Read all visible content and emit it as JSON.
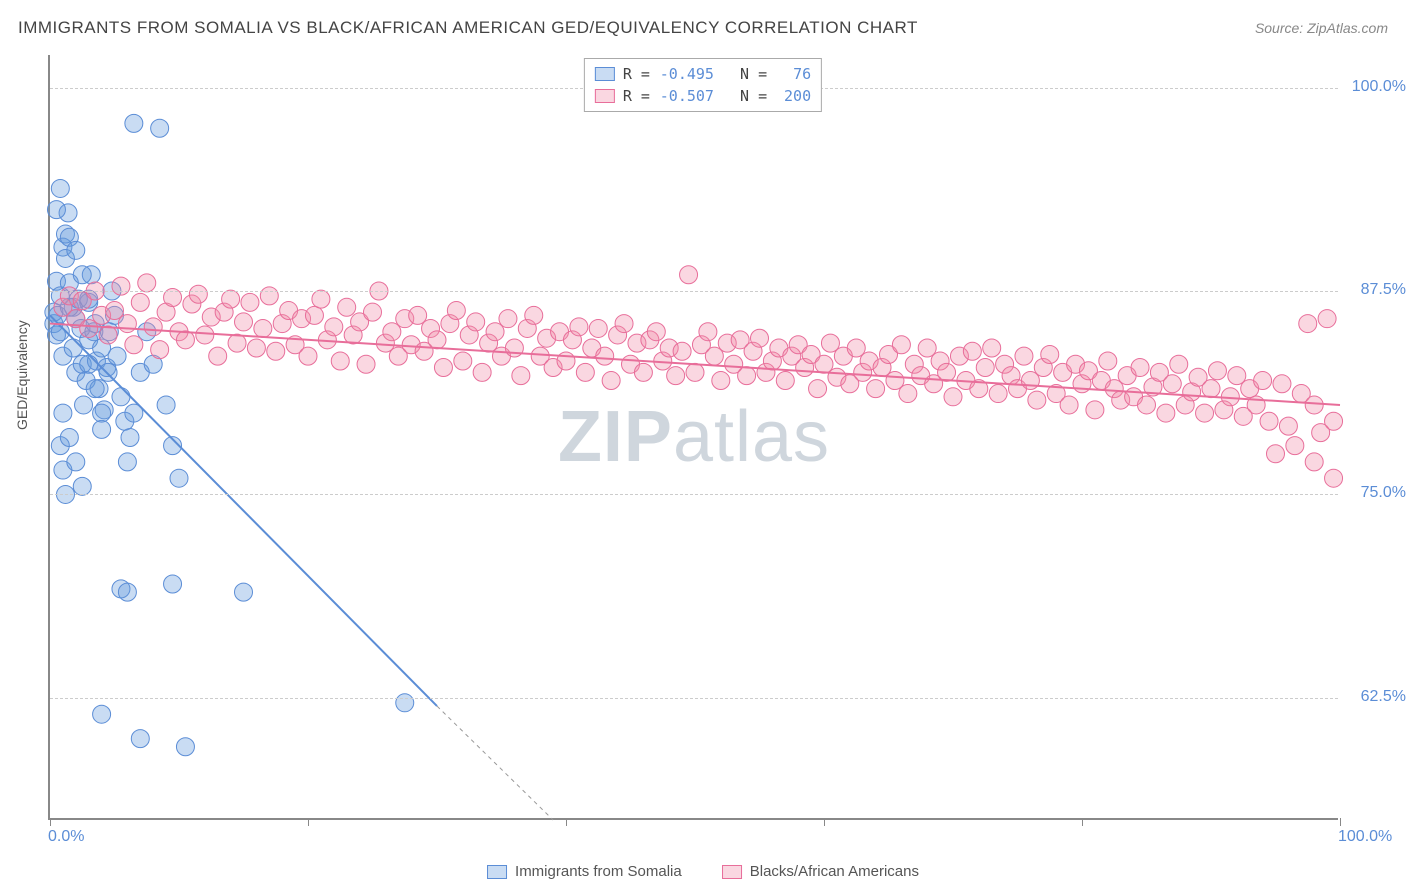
{
  "title": "IMMIGRANTS FROM SOMALIA VS BLACK/AFRICAN AMERICAN GED/EQUIVALENCY CORRELATION CHART",
  "source": "Source: ZipAtlas.com",
  "ylabel": "GED/Equivalency",
  "watermark_a": "ZIP",
  "watermark_b": "atlas",
  "chart": {
    "type": "scatter",
    "xlim": [
      0,
      100
    ],
    "ylim": [
      55,
      102
    ],
    "x_ticks": [
      0,
      20,
      40,
      60,
      80,
      100
    ],
    "y_gridlines": [
      62.5,
      75.0,
      87.5,
      100.0
    ],
    "x_axis_label_left": "0.0%",
    "x_axis_label_right": "100.0%",
    "y_labels": [
      "62.5%",
      "75.0%",
      "87.5%",
      "100.0%"
    ],
    "background_color": "#ffffff",
    "grid_color": "#cccccc",
    "axis_color": "#888888",
    "tick_label_color": "#5b8dd6",
    "marker_radius": 9,
    "marker_opacity": 0.4,
    "line_width": 2,
    "series": [
      {
        "name": "Immigrants from Somalia",
        "color": "#5b8dd6",
        "fill": "rgba(100,155,220,0.35)",
        "R": "-0.495",
        "N": "76",
        "trend": {
          "x1": 0,
          "y1": 86,
          "x2": 30,
          "y2": 62,
          "dash_to_x": 39,
          "dash_to_y": 55
        },
        "points": [
          [
            0.3,
            85.5
          ],
          [
            0.3,
            86.2
          ],
          [
            0.5,
            84.8
          ],
          [
            0.5,
            88.1
          ],
          [
            0.6,
            86.0
          ],
          [
            0.8,
            87.2
          ],
          [
            0.8,
            85.0
          ],
          [
            1.0,
            83.5
          ],
          [
            1.0,
            90.2
          ],
          [
            1.2,
            89.5
          ],
          [
            1.2,
            91.0
          ],
          [
            1.4,
            92.3
          ],
          [
            1.5,
            90.8
          ],
          [
            1.5,
            88.0
          ],
          [
            1.8,
            86.5
          ],
          [
            1.8,
            84.0
          ],
          [
            2.0,
            82.5
          ],
          [
            2.0,
            85.8
          ],
          [
            2.2,
            87.0
          ],
          [
            2.4,
            85.2
          ],
          [
            2.5,
            83.0
          ],
          [
            2.6,
            80.5
          ],
          [
            2.8,
            82.0
          ],
          [
            3.0,
            84.5
          ],
          [
            3.0,
            86.8
          ],
          [
            3.2,
            88.5
          ],
          [
            3.4,
            85.0
          ],
          [
            3.6,
            83.2
          ],
          [
            3.8,
            81.5
          ],
          [
            4.0,
            79.0
          ],
          [
            4.2,
            80.2
          ],
          [
            4.4,
            82.8
          ],
          [
            4.6,
            85.0
          ],
          [
            4.8,
            87.5
          ],
          [
            5.0,
            86.0
          ],
          [
            5.2,
            83.5
          ],
          [
            5.5,
            81.0
          ],
          [
            5.8,
            79.5
          ],
          [
            6.0,
            77.0
          ],
          [
            6.2,
            78.5
          ],
          [
            6.5,
            80.0
          ],
          [
            6.5,
            97.8
          ],
          [
            7.0,
            82.5
          ],
          [
            7.5,
            85.0
          ],
          [
            8.0,
            83.0
          ],
          [
            8.5,
            97.5
          ],
          [
            9.0,
            80.5
          ],
          [
            9.5,
            78.0
          ],
          [
            10.0,
            76.0
          ],
          [
            0.8,
            78.0
          ],
          [
            1.0,
            76.5
          ],
          [
            1.2,
            75.0
          ],
          [
            0.5,
            92.5
          ],
          [
            0.8,
            93.8
          ],
          [
            1.5,
            86.5
          ],
          [
            2.0,
            90.0
          ],
          [
            2.5,
            88.5
          ],
          [
            3.0,
            87.0
          ],
          [
            3.5,
            85.5
          ],
          [
            4.0,
            84.0
          ],
          [
            4.5,
            82.5
          ],
          [
            1.0,
            80.0
          ],
          [
            1.5,
            78.5
          ],
          [
            2.0,
            77.0
          ],
          [
            2.5,
            75.5
          ],
          [
            3.0,
            83.0
          ],
          [
            3.5,
            81.5
          ],
          [
            4.0,
            80.0
          ],
          [
            5.5,
            69.2
          ],
          [
            6.0,
            69.0
          ],
          [
            9.5,
            69.5
          ],
          [
            4.0,
            61.5
          ],
          [
            15.0,
            69.0
          ],
          [
            7.0,
            60.0
          ],
          [
            10.5,
            59.5
          ],
          [
            27.5,
            62.2
          ]
        ]
      },
      {
        "name": "Blacks/African Americans",
        "color": "#e86e9a",
        "fill": "rgba(240,140,170,0.35)",
        "R": "-0.507",
        "N": "200",
        "trend": {
          "x1": 0,
          "y1": 85.5,
          "x2": 100,
          "y2": 80.5
        },
        "points": [
          [
            1,
            86.5
          ],
          [
            1.5,
            87.2
          ],
          [
            2,
            85.8
          ],
          [
            2.5,
            86.9
          ],
          [
            3,
            85.2
          ],
          [
            3.5,
            87.5
          ],
          [
            4,
            86.0
          ],
          [
            4.5,
            84.8
          ],
          [
            5,
            86.3
          ],
          [
            5.5,
            87.8
          ],
          [
            6,
            85.5
          ],
          [
            6.5,
            84.2
          ],
          [
            7,
            86.8
          ],
          [
            7.5,
            88.0
          ],
          [
            8,
            85.3
          ],
          [
            8.5,
            83.9
          ],
          [
            9,
            86.2
          ],
          [
            9.5,
            87.1
          ],
          [
            10,
            85.0
          ],
          [
            10.5,
            84.5
          ],
          [
            11,
            86.7
          ],
          [
            11.5,
            87.3
          ],
          [
            12,
            84.8
          ],
          [
            12.5,
            85.9
          ],
          [
            13,
            83.5
          ],
          [
            13.5,
            86.2
          ],
          [
            14,
            87.0
          ],
          [
            14.5,
            84.3
          ],
          [
            15,
            85.6
          ],
          [
            15.5,
            86.8
          ],
          [
            16,
            84.0
          ],
          [
            16.5,
            85.2
          ],
          [
            17,
            87.2
          ],
          [
            17.5,
            83.8
          ],
          [
            18,
            85.5
          ],
          [
            18.5,
            86.3
          ],
          [
            19,
            84.2
          ],
          [
            19.5,
            85.8
          ],
          [
            20,
            83.5
          ],
          [
            20.5,
            86.0
          ],
          [
            21,
            87.0
          ],
          [
            21.5,
            84.5
          ],
          [
            22,
            85.3
          ],
          [
            22.5,
            83.2
          ],
          [
            23,
            86.5
          ],
          [
            23.5,
            84.8
          ],
          [
            24,
            85.6
          ],
          [
            24.5,
            83.0
          ],
          [
            25,
            86.2
          ],
          [
            25.5,
            87.5
          ],
          [
            26,
            84.3
          ],
          [
            26.5,
            85.0
          ],
          [
            27,
            83.5
          ],
          [
            27.5,
            85.8
          ],
          [
            28,
            84.2
          ],
          [
            28.5,
            86.0
          ],
          [
            29,
            83.8
          ],
          [
            29.5,
            85.2
          ],
          [
            30,
            84.5
          ],
          [
            30.5,
            82.8
          ],
          [
            31,
            85.5
          ],
          [
            31.5,
            86.3
          ],
          [
            32,
            83.2
          ],
          [
            32.5,
            84.8
          ],
          [
            33,
            85.6
          ],
          [
            33.5,
            82.5
          ],
          [
            34,
            84.3
          ],
          [
            34.5,
            85.0
          ],
          [
            35,
            83.5
          ],
          [
            35.5,
            85.8
          ],
          [
            36,
            84.0
          ],
          [
            36.5,
            82.3
          ],
          [
            37,
            85.2
          ],
          [
            37.5,
            86.0
          ],
          [
            38,
            83.5
          ],
          [
            38.5,
            84.6
          ],
          [
            39,
            82.8
          ],
          [
            39.5,
            85.0
          ],
          [
            40,
            83.2
          ],
          [
            40.5,
            84.5
          ],
          [
            41,
            85.3
          ],
          [
            41.5,
            82.5
          ],
          [
            42,
            84.0
          ],
          [
            42.5,
            85.2
          ],
          [
            43,
            83.5
          ],
          [
            43.5,
            82.0
          ],
          [
            44,
            84.8
          ],
          [
            44.5,
            85.5
          ],
          [
            45,
            83.0
          ],
          [
            45.5,
            84.3
          ],
          [
            46,
            82.5
          ],
          [
            46.5,
            84.5
          ],
          [
            47,
            85.0
          ],
          [
            47.5,
            83.2
          ],
          [
            48,
            84.0
          ],
          [
            48.5,
            82.3
          ],
          [
            49,
            83.8
          ],
          [
            49.5,
            88.5
          ],
          [
            50,
            82.5
          ],
          [
            50.5,
            84.2
          ],
          [
            51,
            85.0
          ],
          [
            51.5,
            83.5
          ],
          [
            52,
            82.0
          ],
          [
            52.5,
            84.3
          ],
          [
            53,
            83.0
          ],
          [
            53.5,
            84.5
          ],
          [
            54,
            82.3
          ],
          [
            54.5,
            83.8
          ],
          [
            55,
            84.6
          ],
          [
            55.5,
            82.5
          ],
          [
            56,
            83.2
          ],
          [
            56.5,
            84.0
          ],
          [
            57,
            82.0
          ],
          [
            57.5,
            83.5
          ],
          [
            58,
            84.2
          ],
          [
            58.5,
            82.8
          ],
          [
            59,
            83.6
          ],
          [
            59.5,
            81.5
          ],
          [
            60,
            83.0
          ],
          [
            60.5,
            84.3
          ],
          [
            61,
            82.2
          ],
          [
            61.5,
            83.5
          ],
          [
            62,
            81.8
          ],
          [
            62.5,
            84.0
          ],
          [
            63,
            82.5
          ],
          [
            63.5,
            83.2
          ],
          [
            64,
            81.5
          ],
          [
            64.5,
            82.8
          ],
          [
            65,
            83.6
          ],
          [
            65.5,
            82.0
          ],
          [
            66,
            84.2
          ],
          [
            66.5,
            81.2
          ],
          [
            67,
            83.0
          ],
          [
            67.5,
            82.3
          ],
          [
            68,
            84.0
          ],
          [
            68.5,
            81.8
          ],
          [
            69,
            83.2
          ],
          [
            69.5,
            82.5
          ],
          [
            70,
            81.0
          ],
          [
            70.5,
            83.5
          ],
          [
            71,
            82.0
          ],
          [
            71.5,
            83.8
          ],
          [
            72,
            81.5
          ],
          [
            72.5,
            82.8
          ],
          [
            73,
            84.0
          ],
          [
            73.5,
            81.2
          ],
          [
            74,
            83.0
          ],
          [
            74.5,
            82.3
          ],
          [
            75,
            81.5
          ],
          [
            75.5,
            83.5
          ],
          [
            76,
            82.0
          ],
          [
            76.5,
            80.8
          ],
          [
            77,
            82.8
          ],
          [
            77.5,
            83.6
          ],
          [
            78,
            81.2
          ],
          [
            78.5,
            82.5
          ],
          [
            79,
            80.5
          ],
          [
            79.5,
            83.0
          ],
          [
            80,
            81.8
          ],
          [
            80.5,
            82.6
          ],
          [
            81,
            80.2
          ],
          [
            81.5,
            82.0
          ],
          [
            82,
            83.2
          ],
          [
            82.5,
            81.5
          ],
          [
            83,
            80.8
          ],
          [
            83.5,
            82.3
          ],
          [
            84,
            81.0
          ],
          [
            84.5,
            82.8
          ],
          [
            85,
            80.5
          ],
          [
            85.5,
            81.6
          ],
          [
            86,
            82.5
          ],
          [
            86.5,
            80.0
          ],
          [
            87,
            81.8
          ],
          [
            87.5,
            83.0
          ],
          [
            88,
            80.5
          ],
          [
            88.5,
            81.3
          ],
          [
            89,
            82.2
          ],
          [
            89.5,
            80.0
          ],
          [
            90,
            81.5
          ],
          [
            90.5,
            82.6
          ],
          [
            91,
            80.2
          ],
          [
            91.5,
            81.0
          ],
          [
            92,
            82.3
          ],
          [
            92.5,
            79.8
          ],
          [
            93,
            81.5
          ],
          [
            93.5,
            80.5
          ],
          [
            94,
            82.0
          ],
          [
            94.5,
            79.5
          ],
          [
            95,
            77.5
          ],
          [
            95.5,
            81.8
          ],
          [
            96,
            79.2
          ],
          [
            96.5,
            78.0
          ],
          [
            97,
            81.2
          ],
          [
            97.5,
            85.5
          ],
          [
            98,
            77.0
          ],
          [
            98,
            80.5
          ],
          [
            98.5,
            78.8
          ],
          [
            99,
            85.8
          ],
          [
            99.5,
            76.0
          ],
          [
            99.5,
            79.5
          ]
        ]
      }
    ]
  },
  "legend_bottom": [
    {
      "label": "Immigrants from Somalia",
      "color": "#5b8dd6",
      "fill": "rgba(100,155,220,0.35)"
    },
    {
      "label": "Blacks/African Americans",
      "color": "#e86e9a",
      "fill": "rgba(240,140,170,0.35)"
    }
  ]
}
